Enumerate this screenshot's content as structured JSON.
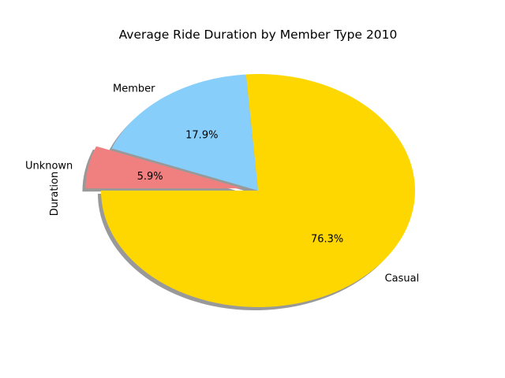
{
  "chart_data": {
    "type": "pie",
    "title": "Average Ride Duration by Member Type 2010",
    "ylabel": "Duration",
    "categories": [
      "Casual",
      "Member",
      "Unknown"
    ],
    "values": [
      76.3,
      17.9,
      5.9
    ],
    "percent_labels": [
      "76.3%",
      "17.9%",
      "5.9%"
    ],
    "colors": [
      "#ffd700",
      "#87cefa",
      "#f08080"
    ],
    "explode": [
      0,
      0,
      0.1
    ],
    "shadow": true,
    "start_angle_deg": 180,
    "direction": "counterclockwise"
  }
}
